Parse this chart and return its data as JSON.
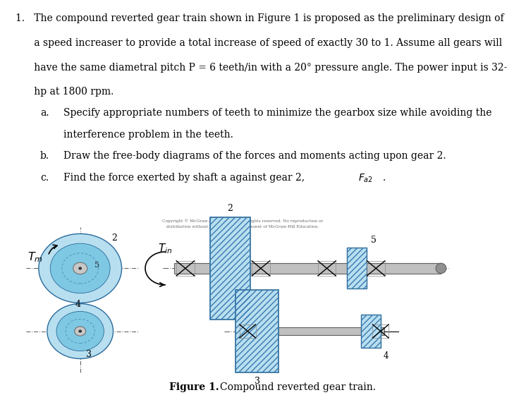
{
  "bg_color": "#ffffff",
  "text_color": "#000000",
  "copyright_line1": "Copyright © McGraw-Hill Education. All rights reserved. No reproduction or",
  "copyright_line2": "distribution without the prior written consent of McGraw-Hill Education.",
  "gear_blue_light": "#b8dff0",
  "gear_blue_mid": "#7ec8e3",
  "gear_outline": "#2a6a9a",
  "shaft_color": "#c0c0c0",
  "shaft_dark": "#909090",
  "shaft_edge": "#606060",
  "cl_color": "#555555",
  "text_fs": 10.0,
  "sub_indent_a": 0.08,
  "sub_indent_b": 0.13,
  "line1": "1.   The compound reverted gear train shown in Figure 1 is proposed as the preliminary design of",
  "line2": "      a speed increaser to provide a total increase of speed of exactly 30 to 1. Assume all gears will",
  "line3": "      have the same diametral pitch P = 6 teeth/in with a 20° pressure angle. The power input is 32-",
  "line4": "      hp at 1800 rpm.",
  "line_a1": "Specify appropriate numbers of teeth to minimize the gearbox size while avoiding the",
  "line_a2": "interference problem in the teeth.",
  "line_b": "Draw the free-body diagrams of the forces and moments acting upon gear 2.",
  "line_c": "Find the force exerted by shaft a against gear 2, $F_{a2}$.",
  "fig_caption_bold": "Figure 1.",
  "fig_caption_normal": " Compound reverted gear train."
}
